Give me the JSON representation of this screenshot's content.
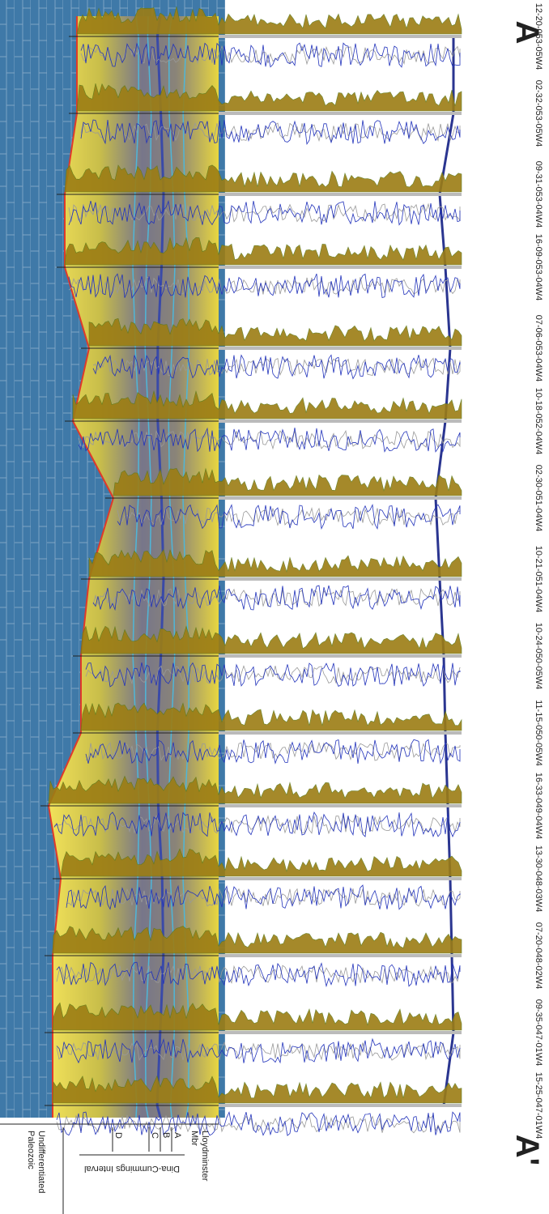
{
  "labels": {
    "start": "A",
    "end": "A'"
  },
  "wells": [
    "12-20-053-05W4",
    "02-32-053-05W4",
    "09-31-053-04W4",
    "16-09-053-04W4",
    "07-06-053-04W4",
    "10-18-052-04W4",
    "02-30-051-04W4",
    "10-21-051-04W4",
    "10-24-050-05W4",
    "11-15-050-05W4",
    "16-33-049-04W4",
    "13-30-048-03W4",
    "07-20-048-02W4",
    "09-35-047-01W4",
    "15-25-047-01W4"
  ],
  "legend": {
    "lloydminster": [
      "Lloydminster",
      "Mbr"
    ],
    "a": "A",
    "b": "B",
    "c": "C",
    "d": "D",
    "interval": "Dina-Cummings Interval",
    "paleozoic": [
      "Undifferentiated",
      "Paleozoic"
    ]
  }
}
